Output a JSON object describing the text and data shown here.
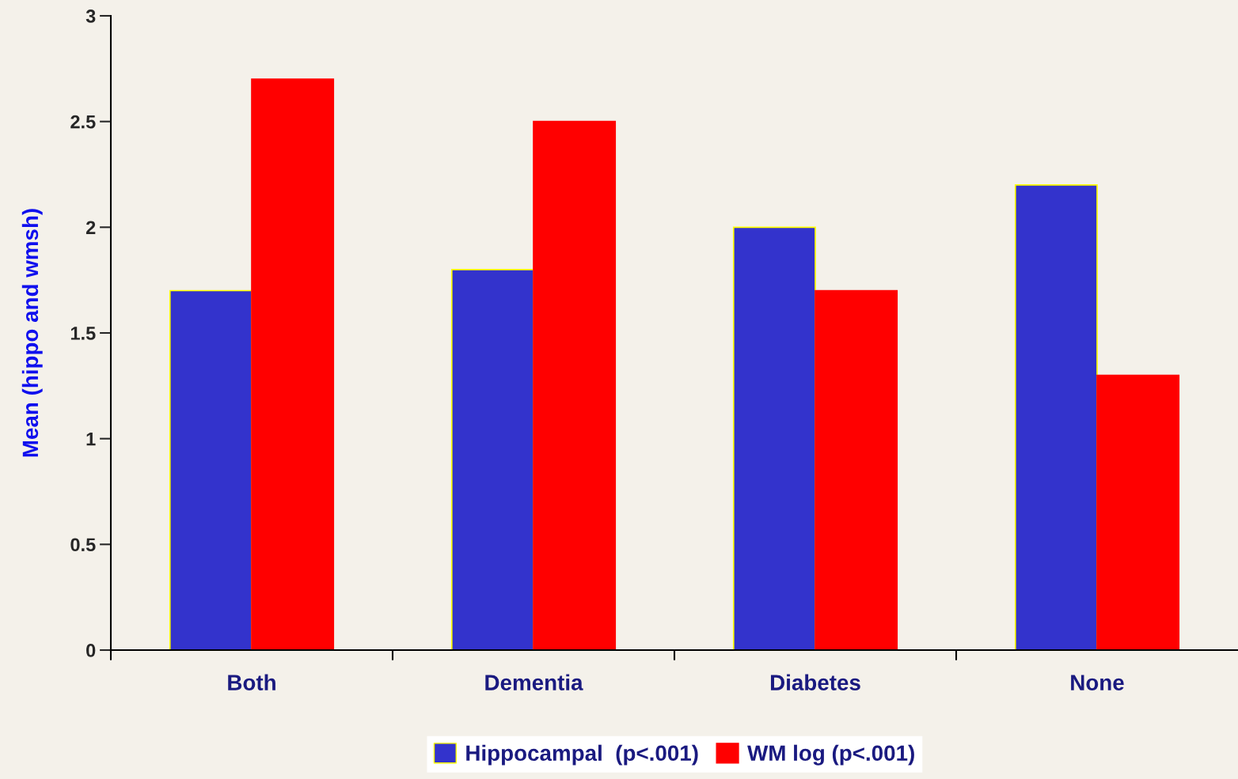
{
  "chart_data": {
    "type": "bar",
    "ylabel": "Mean (hippo and wmsh)",
    "categories": [
      "Both",
      "Dementia",
      "Diabetes",
      "None"
    ],
    "series": [
      {
        "name": "Hippocampal  (p<.001)",
        "color": "#3333cc",
        "values": [
          1.7,
          1.8,
          2.0,
          2.2
        ]
      },
      {
        "name": "WM log (p<.001)",
        "color": "#ff0000",
        "values": [
          2.7,
          2.5,
          1.7,
          1.3
        ]
      }
    ],
    "ylim": [
      0,
      3
    ],
    "yticks": [
      0,
      0.5,
      1,
      1.5,
      2,
      2.5,
      3
    ],
    "grid": false,
    "legend": "bottom"
  }
}
